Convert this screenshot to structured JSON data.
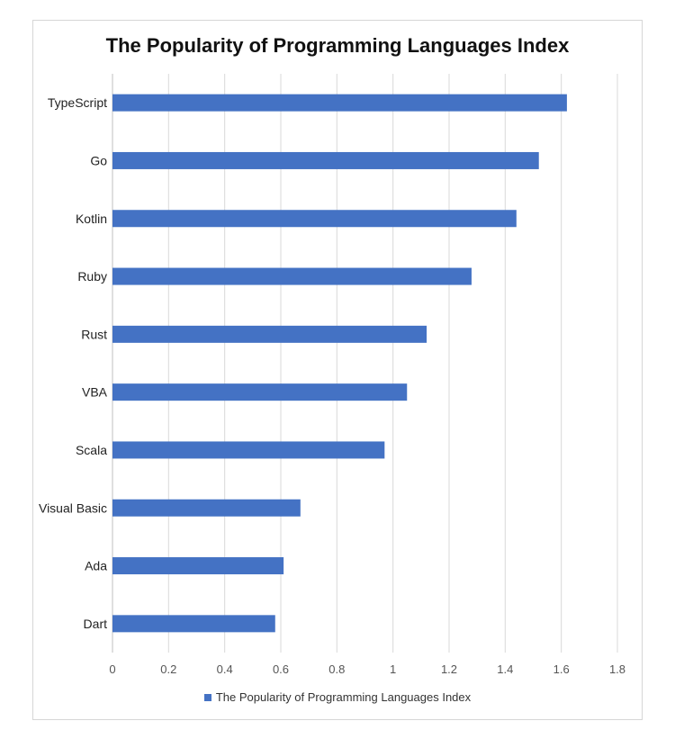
{
  "chart_data": {
    "type": "bar",
    "orientation": "horizontal",
    "title": "The Popularity of Programming Languages Index",
    "categories": [
      "TypeScript",
      "Go",
      "Kotlin",
      "Ruby",
      "Rust",
      "VBA",
      "Scala",
      "Visual Basic",
      "Ada",
      "Dart"
    ],
    "series": [
      {
        "name": "The Popularity of Programming Languages Index",
        "values": [
          1.62,
          1.52,
          1.44,
          1.28,
          1.12,
          1.05,
          0.97,
          0.67,
          0.61,
          0.58
        ],
        "color": "#4472c4"
      }
    ],
    "xlim": [
      0,
      1.8
    ],
    "xticks": [
      "0",
      "0.2",
      "0.4",
      "0.6",
      "0.8",
      "1",
      "1.2",
      "1.4",
      "1.6",
      "1.8"
    ],
    "grid": true,
    "legend_position": "bottom"
  }
}
